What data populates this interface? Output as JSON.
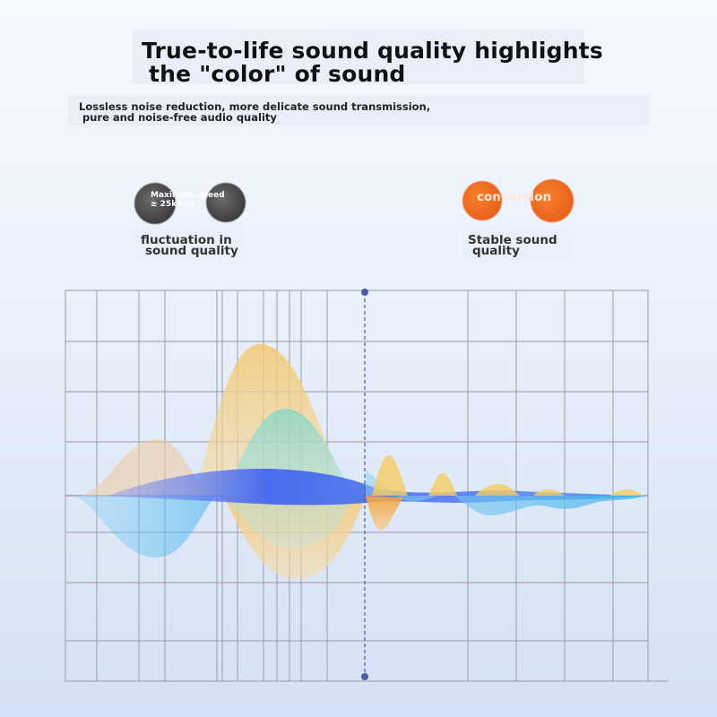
{
  "headline": {
    "line1": "True-to-life sound quality highlights",
    "line2": "the \"color\" of sound"
  },
  "subheadline": {
    "line1": "Lossless noise reduction, more delicate sound transmission,",
    "line2": "pure and noise-free audio quality"
  },
  "left_badge": {
    "text_line1": "Maximum speed",
    "text_line2": "≥ 25km/h",
    "caption_line1": "fluctuation in",
    "caption_line2": "sound quality",
    "color": "#4f4f4f"
  },
  "right_badge": {
    "text": "conversion",
    "caption_line1": "Stable sound",
    "caption_line2": "quality",
    "color": "#ef6a21"
  },
  "colors": {
    "wave_gold": "#f2c56d",
    "wave_teal": "#7fd4c6",
    "wave_blue": "#4a6cf0",
    "wave_sky": "#58bdf0",
    "wave_orange": "#f3a13a",
    "grid": "#9a9ca3",
    "marker": "#4b5aa8"
  }
}
